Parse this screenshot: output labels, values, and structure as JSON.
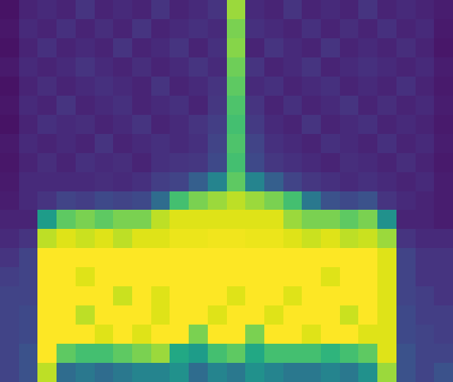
{
  "chart_data": {
    "type": "heatmap",
    "color": "viridis",
    "tick_labels": false,
    "zlim": [
      0,
      1
    ],
    "z": [
      [
        0.05,
        0.1,
        0.12,
        0.1,
        0.15,
        0.1,
        0.12,
        0.1,
        0.15,
        0.1,
        0.12,
        0.15,
        0.85,
        0.12,
        0.1,
        0.15,
        0.1,
        0.12,
        0.1,
        0.15,
        0.1,
        0.12,
        0.1,
        0.08
      ],
      [
        0.06,
        0.12,
        0.1,
        0.14,
        0.1,
        0.13,
        0.1,
        0.15,
        0.1,
        0.12,
        0.14,
        0.12,
        0.8,
        0.14,
        0.12,
        0.1,
        0.14,
        0.1,
        0.13,
        0.1,
        0.14,
        0.1,
        0.12,
        0.07
      ],
      [
        0.05,
        0.1,
        0.14,
        0.1,
        0.12,
        0.1,
        0.15,
        0.1,
        0.12,
        0.15,
        0.1,
        0.14,
        0.82,
        0.1,
        0.15,
        0.12,
        0.1,
        0.15,
        0.1,
        0.12,
        0.1,
        0.13,
        0.1,
        0.06
      ],
      [
        0.07,
        0.12,
        0.1,
        0.12,
        0.15,
        0.12,
        0.1,
        0.13,
        0.1,
        0.12,
        0.15,
        0.12,
        0.78,
        0.15,
        0.1,
        0.12,
        0.15,
        0.1,
        0.12,
        0.14,
        0.12,
        0.1,
        0.12,
        0.08
      ],
      [
        0.05,
        0.1,
        0.13,
        0.1,
        0.12,
        0.14,
        0.12,
        0.1,
        0.15,
        0.1,
        0.12,
        0.15,
        0.75,
        0.12,
        0.14,
        0.1,
        0.12,
        0.14,
        0.1,
        0.12,
        0.1,
        0.14,
        0.1,
        0.07
      ],
      [
        0.06,
        0.12,
        0.1,
        0.15,
        0.1,
        0.12,
        0.14,
        0.1,
        0.12,
        0.14,
        0.1,
        0.16,
        0.72,
        0.15,
        0.1,
        0.14,
        0.1,
        0.12,
        0.15,
        0.1,
        0.13,
        0.1,
        0.12,
        0.08
      ],
      [
        0.05,
        0.1,
        0.14,
        0.12,
        0.13,
        0.1,
        0.12,
        0.15,
        0.1,
        0.12,
        0.15,
        0.18,
        0.7,
        0.17,
        0.12,
        0.1,
        0.15,
        0.1,
        0.12,
        0.14,
        0.1,
        0.12,
        0.1,
        0.07
      ],
      [
        0.07,
        0.12,
        0.1,
        0.12,
        0.1,
        0.15,
        0.1,
        0.12,
        0.14,
        0.12,
        0.14,
        0.2,
        0.72,
        0.2,
        0.14,
        0.12,
        0.1,
        0.14,
        0.12,
        0.1,
        0.14,
        0.1,
        0.12,
        0.08
      ],
      [
        0.06,
        0.1,
        0.13,
        0.1,
        0.14,
        0.12,
        0.13,
        0.1,
        0.14,
        0.15,
        0.16,
        0.22,
        0.7,
        0.22,
        0.16,
        0.14,
        0.12,
        0.1,
        0.13,
        0.12,
        0.1,
        0.13,
        0.1,
        0.07
      ],
      [
        0.07,
        0.12,
        0.12,
        0.12,
        0.12,
        0.13,
        0.12,
        0.14,
        0.18,
        0.2,
        0.3,
        0.45,
        0.75,
        0.45,
        0.3,
        0.2,
        0.16,
        0.14,
        0.12,
        0.14,
        0.12,
        0.1,
        0.12,
        0.08
      ],
      [
        0.08,
        0.12,
        0.15,
        0.2,
        0.18,
        0.22,
        0.2,
        0.22,
        0.35,
        0.7,
        0.8,
        0.85,
        0.9,
        0.85,
        0.8,
        0.7,
        0.4,
        0.25,
        0.22,
        0.25,
        0.15,
        0.12,
        0.1,
        0.08
      ],
      [
        0.1,
        0.1,
        0.55,
        0.75,
        0.8,
        0.75,
        0.8,
        0.8,
        0.9,
        0.95,
        0.95,
        0.95,
        0.95,
        0.95,
        0.95,
        0.85,
        0.8,
        0.8,
        0.75,
        0.8,
        0.5,
        0.1,
        0.1,
        0.08
      ],
      [
        0.12,
        0.15,
        0.9,
        0.95,
        0.92,
        0.95,
        0.9,
        0.95,
        0.95,
        0.97,
        0.97,
        0.98,
        0.98,
        0.97,
        0.97,
        0.95,
        0.92,
        0.95,
        0.9,
        0.92,
        0.85,
        0.15,
        0.12,
        0.12
      ],
      [
        0.15,
        0.2,
        1.0,
        1.0,
        1.0,
        1.0,
        1.0,
        1.0,
        1.0,
        1.0,
        1.0,
        1.0,
        1.0,
        1.0,
        1.0,
        1.0,
        1.0,
        1.0,
        1.0,
        1.0,
        0.95,
        0.2,
        0.15,
        0.15
      ],
      [
        0.18,
        0.2,
        1.0,
        1.0,
        0.95,
        1.0,
        1.0,
        1.0,
        1.0,
        1.0,
        1.0,
        1.0,
        1.0,
        1.0,
        1.0,
        1.0,
        1.0,
        0.95,
        1.0,
        1.0,
        0.95,
        0.2,
        0.15,
        0.15
      ],
      [
        0.2,
        0.2,
        1.0,
        1.0,
        1.0,
        1.0,
        0.92,
        1.0,
        0.95,
        1.0,
        1.0,
        1.0,
        0.95,
        1.0,
        1.0,
        0.95,
        1.0,
        1.0,
        1.0,
        1.0,
        0.95,
        0.2,
        0.18,
        0.15
      ],
      [
        0.2,
        0.22,
        1.0,
        1.0,
        0.9,
        1.0,
        1.0,
        1.0,
        0.95,
        1.0,
        1.0,
        0.95,
        1.0,
        1.0,
        0.95,
        1.0,
        1.0,
        1.0,
        0.92,
        1.0,
        0.95,
        0.22,
        0.18,
        0.18
      ],
      [
        0.2,
        0.22,
        1.0,
        1.0,
        1.0,
        0.95,
        1.0,
        0.95,
        1.0,
        1.0,
        0.8,
        1.0,
        1.0,
        0.8,
        1.0,
        1.0,
        0.95,
        1.0,
        1.0,
        0.95,
        0.95,
        0.22,
        0.2,
        0.18
      ],
      [
        0.2,
        0.25,
        1.0,
        0.75,
        0.7,
        0.7,
        0.75,
        0.8,
        0.85,
        0.6,
        0.55,
        0.7,
        0.75,
        0.6,
        0.7,
        0.7,
        0.7,
        0.65,
        0.7,
        0.75,
        0.95,
        0.25,
        0.2,
        0.2
      ],
      [
        0.2,
        0.25,
        0.9,
        0.35,
        0.4,
        0.35,
        0.4,
        0.45,
        0.45,
        0.5,
        0.35,
        0.45,
        0.4,
        0.5,
        0.45,
        0.4,
        0.4,
        0.45,
        0.4,
        0.5,
        0.85,
        0.25,
        0.2,
        0.25
      ]
    ]
  }
}
